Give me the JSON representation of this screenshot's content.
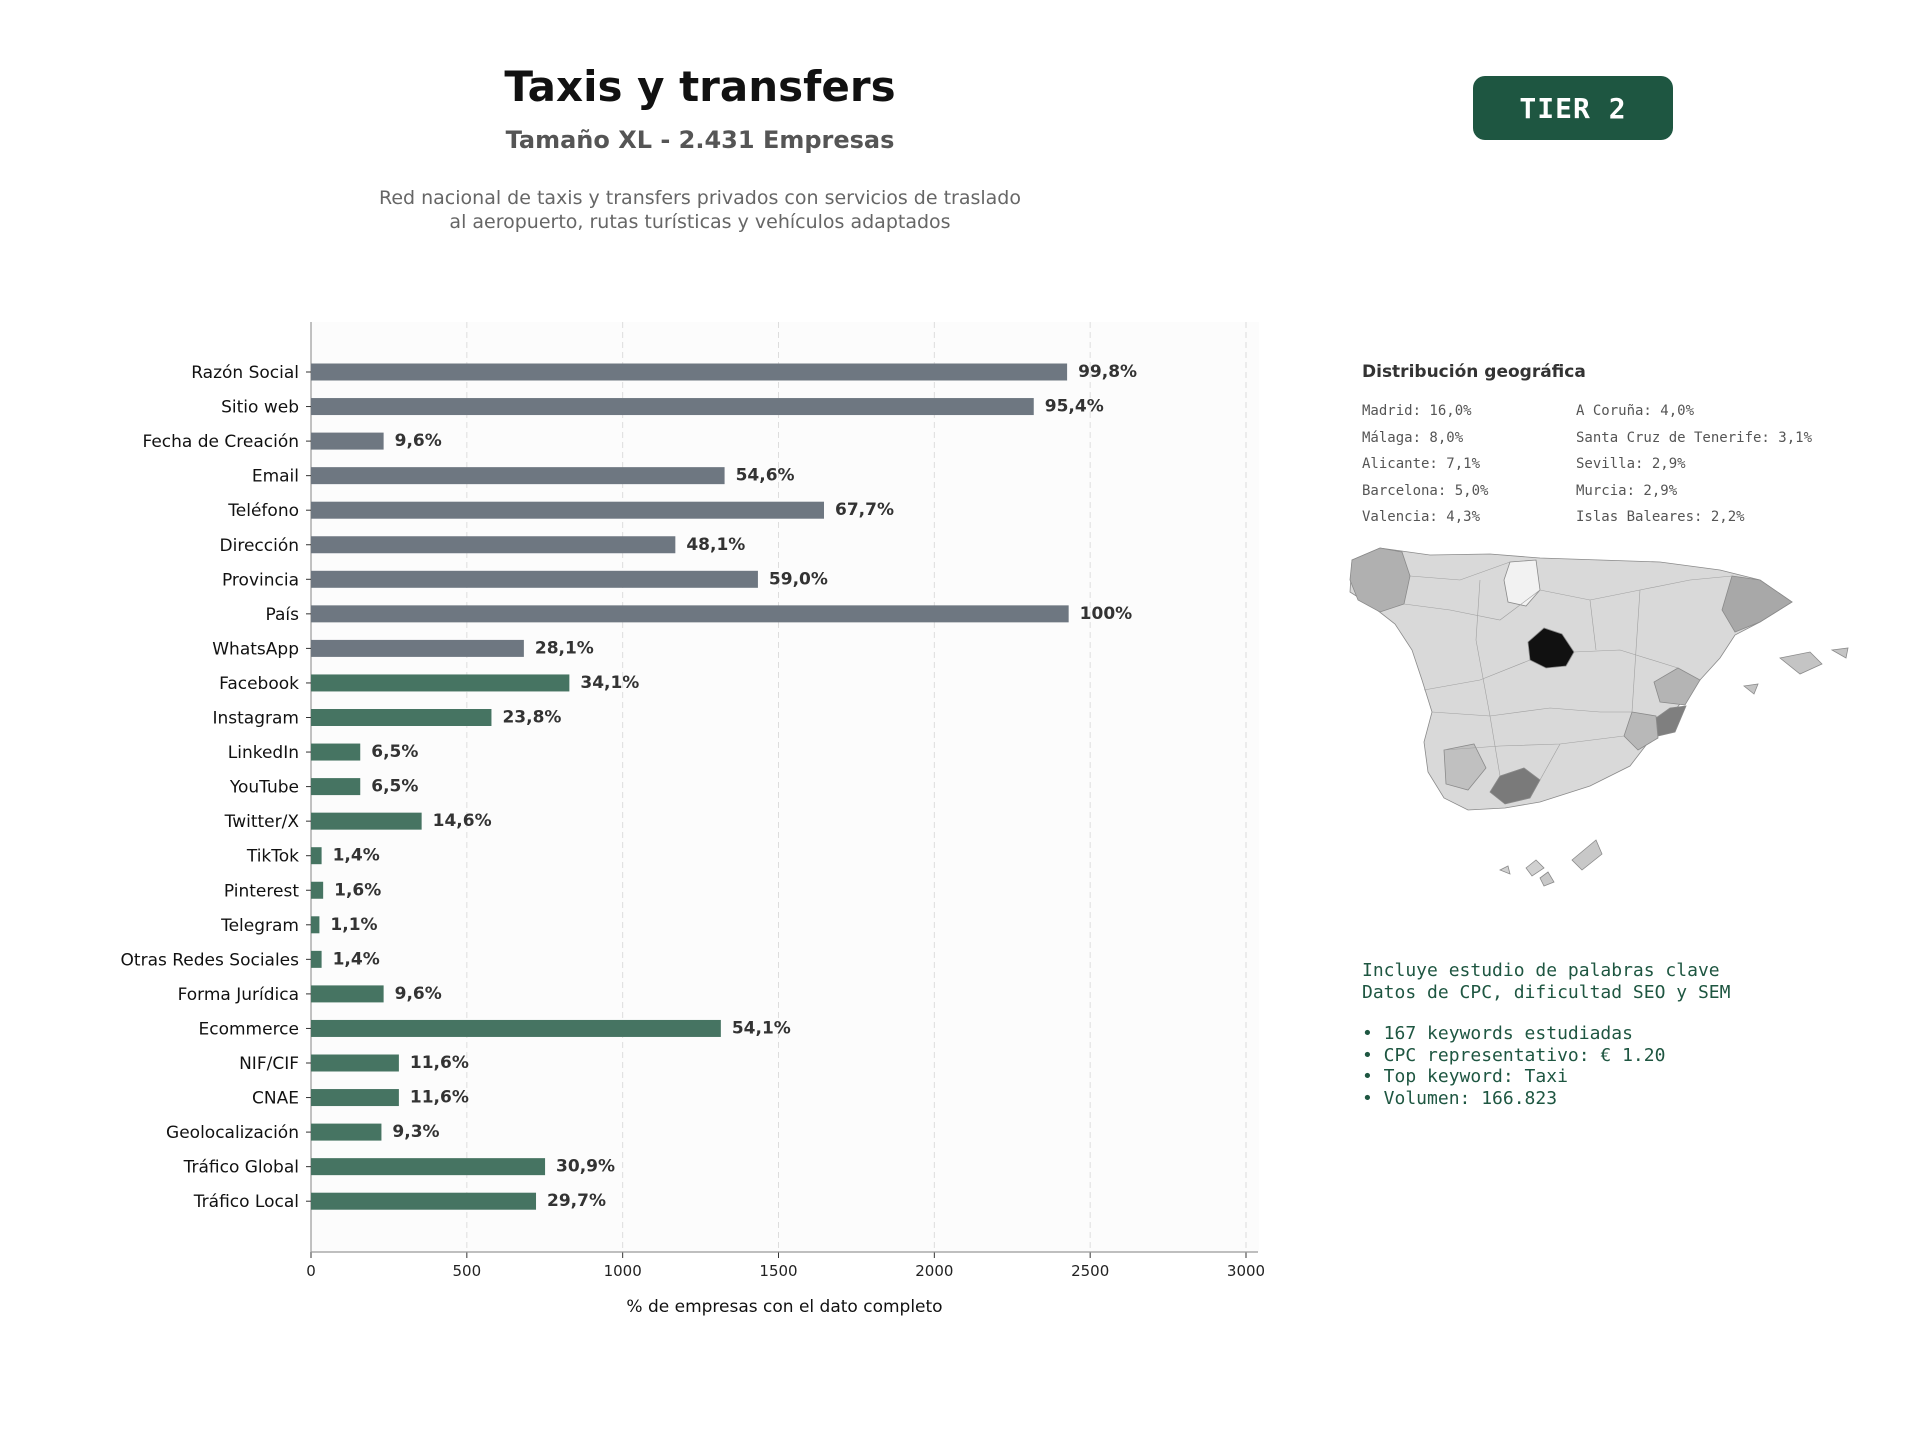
{
  "header": {
    "title": "Taxis y transfers",
    "subtitle": "Tamaño XL - 2.431 Empresas",
    "description_line1": "Red nacional de taxis y transfers privados con servicios de traslado",
    "description_line2": "al aeropuerto, rutas turísticas y vehículos adaptados",
    "tier_badge": "TIER 2"
  },
  "colors": {
    "gray_bar": "#6e7781",
    "green_bar": "#467462",
    "accent": "#1e5641"
  },
  "chart_data": {
    "type": "bar",
    "orientation": "horizontal",
    "xlabel": "% de empresas con el dato completo",
    "xlim": [
      0,
      3000
    ],
    "xticks": [
      0,
      500,
      1000,
      1500,
      2000,
      2500,
      3000
    ],
    "grid": "vertical dashed",
    "categories": [
      "Razón Social",
      "Sitio web",
      "Fecha de Creación",
      "Email",
      "Teléfono",
      "Dirección",
      "Provincia",
      "País",
      "WhatsApp",
      "Facebook",
      "Instagram",
      "LinkedIn",
      "YouTube",
      "Twitter/X",
      "TikTok",
      "Pinterest",
      "Telegram",
      "Otras Redes Sociales",
      "Forma Jurídica",
      "Ecommerce",
      "NIF/CIF",
      "CNAE",
      "Geolocalización",
      "Tráfico Global",
      "Tráfico Local"
    ],
    "values": [
      2426,
      2319,
      233,
      1327,
      1646,
      1169,
      1434,
      2431,
      683,
      829,
      579,
      158,
      158,
      355,
      34,
      39,
      27,
      34,
      233,
      1315,
      282,
      282,
      226,
      751,
      722
    ],
    "labels": [
      "99,8%",
      "95,4%",
      "9,6%",
      "54,6%",
      "67,7%",
      "48,1%",
      "59,0%",
      "100%",
      "28,1%",
      "34,1%",
      "23,8%",
      "6,5%",
      "6,5%",
      "14,6%",
      "1,4%",
      "1,6%",
      "1,1%",
      "1,4%",
      "9,6%",
      "54,1%",
      "11,6%",
      "11,6%",
      "9,3%",
      "30,9%",
      "29,7%"
    ],
    "bar_colors": [
      "gray",
      "gray",
      "gray",
      "gray",
      "gray",
      "gray",
      "gray",
      "gray",
      "gray",
      "green",
      "green",
      "green",
      "green",
      "green",
      "green",
      "green",
      "green",
      "green",
      "green",
      "green",
      "green",
      "green",
      "green",
      "green",
      "green"
    ]
  },
  "geo": {
    "title": "Distribución geográfica",
    "col1": [
      "Madrid: 16,0%",
      "Málaga: 8,0%",
      "Alicante: 7,1%",
      "Barcelona: 5,0%",
      "Valencia: 4,3%"
    ],
    "col2": [
      "A Coruña: 4,0%",
      "Santa Cruz de Tenerife: 3,1%",
      "Sevilla: 2,9%",
      "Murcia: 2,9%",
      "Islas Baleares: 2,2%"
    ]
  },
  "keywords": {
    "line1": "Incluye estudio de palabras clave",
    "line2": "Datos de CPC, dificultad SEO y SEM",
    "bullets": [
      "• 167 keywords estudiadas",
      "• CPC representativo: € 1.20",
      "• Top keyword: Taxi",
      "• Volumen: 166.823"
    ]
  }
}
